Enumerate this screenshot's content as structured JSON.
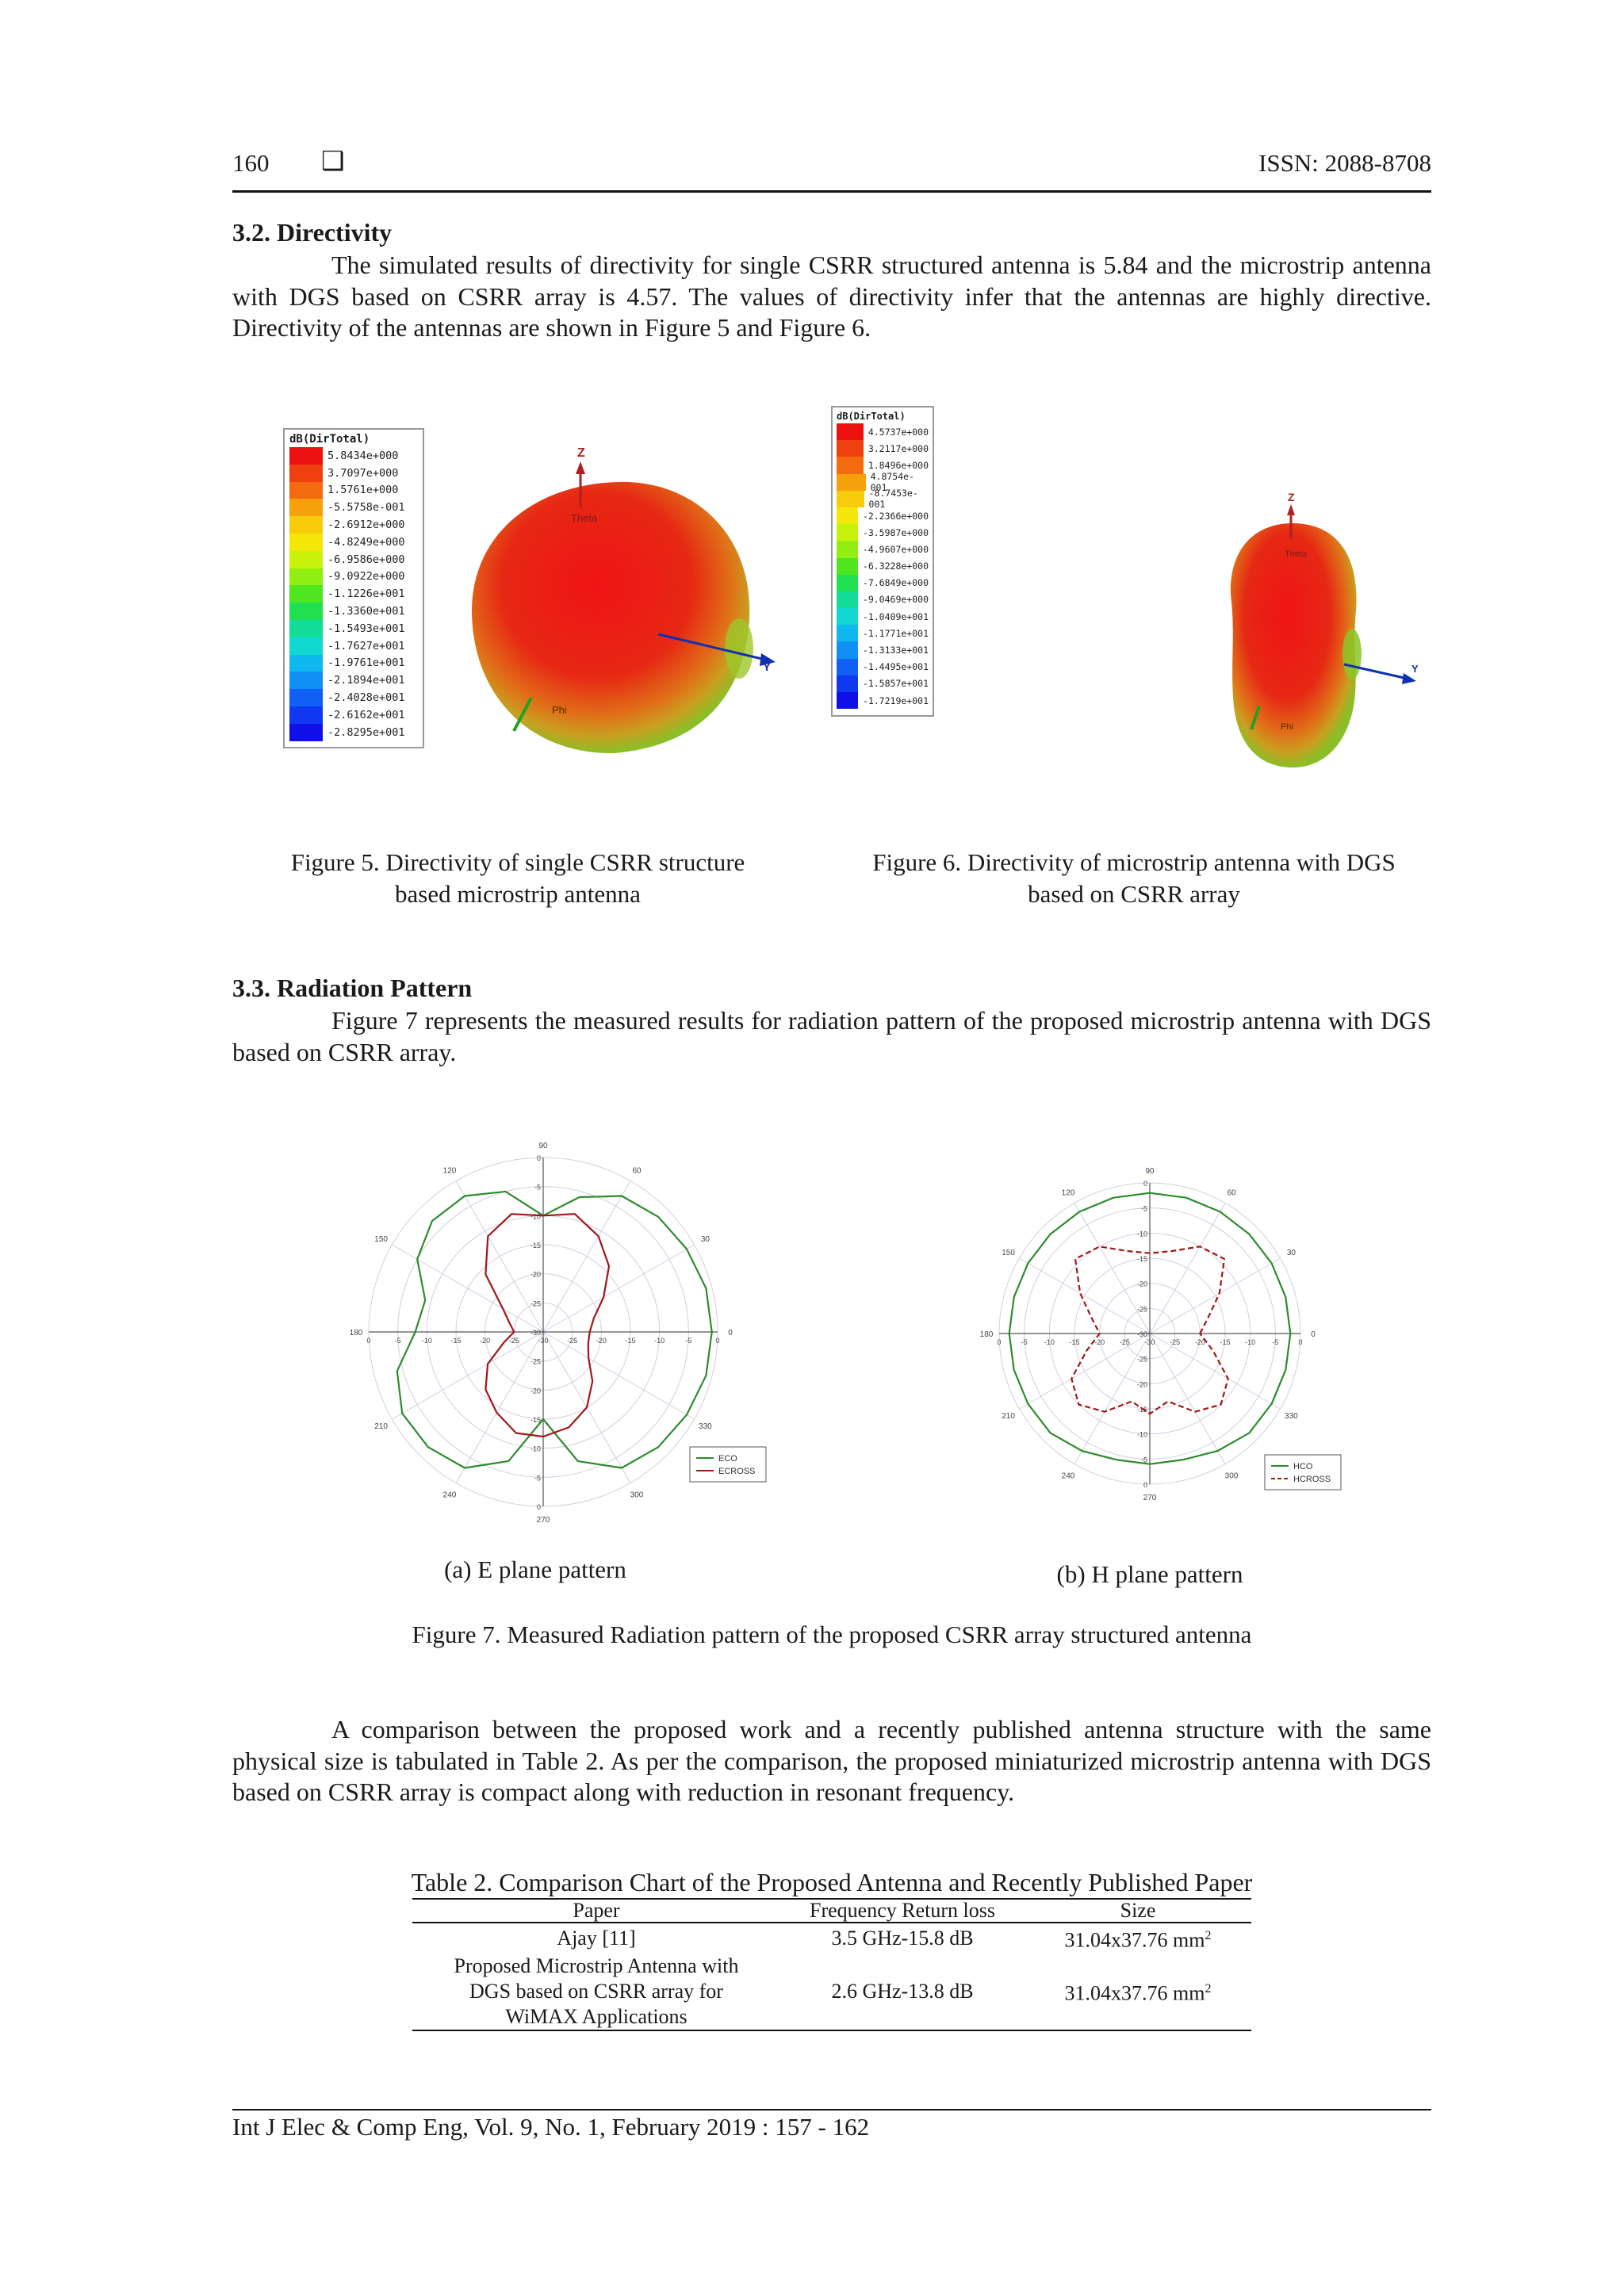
{
  "header": {
    "page_number": "160",
    "symbol": "❑",
    "issn": "ISSN: 2088-8708"
  },
  "section_32": {
    "title": "3.2. Directivity",
    "paragraph": "The simulated results of directivity for single CSRR structured antenna is 5.84 and the microstrip antenna with DGS based on CSRR array is 4.57. The values of directivity infer that the antennas are highly directive. Directivity of the antennas are shown in Figure 5 and Figure 6."
  },
  "figure5": {
    "scale_title": "dB(DirTotal)",
    "scale_values": [
      "5.8434e+000",
      "3.7097e+000",
      "1.5761e+000",
      "-5.5758e-001",
      "-2.6912e+000",
      "-4.8249e+000",
      "-6.9586e+000",
      "-9.0922e+000",
      "-1.1226e+001",
      "-1.3360e+001",
      "-1.5493e+001",
      "-1.7627e+001",
      "-1.9761e+001",
      "-2.1894e+001",
      "-2.4028e+001",
      "-2.6162e+001",
      "-2.8295e+001"
    ],
    "scale_colors": [
      "#ee1111",
      "#f04010",
      "#f36b0e",
      "#f6a00c",
      "#f8cc0a",
      "#f4e80a",
      "#c8f20a",
      "#90ee10",
      "#4fe620",
      "#20e050",
      "#12dd99",
      "#10d8d0",
      "#10b8f0",
      "#1090f5",
      "#1060f5",
      "#1038f0",
      "#1010e8"
    ],
    "axis_labels": {
      "z": "Z",
      "y": "Y",
      "theta": "Theta",
      "phi": "Phi"
    },
    "caption_line1": "Figure 5. Directivity of single CSRR structure",
    "caption_line2": "based microstrip antenna"
  },
  "figure6": {
    "scale_title": "dB(DirTotal)",
    "scale_values": [
      "4.5737e+000",
      "3.2117e+000",
      "1.8496e+000",
      "4.8754e-001",
      "-8.7453e-001",
      "-2.2366e+000",
      "-3.5987e+000",
      "-4.9607e+000",
      "-6.3228e+000",
      "-7.6849e+000",
      "-9.0469e+000",
      "-1.0409e+001",
      "-1.1771e+001",
      "-1.3133e+001",
      "-1.4495e+001",
      "-1.5857e+001",
      "-1.7219e+001"
    ],
    "scale_colors": [
      "#ee1111",
      "#f04010",
      "#f36b0e",
      "#f6a00c",
      "#f8cc0a",
      "#f4e80a",
      "#c8f20a",
      "#90ee10",
      "#4fe620",
      "#20e050",
      "#12dd99",
      "#10d8d0",
      "#10b8f0",
      "#1090f5",
      "#1060f5",
      "#1038f0",
      "#1010e8"
    ],
    "axis_labels": {
      "z": "Z",
      "y": "Y",
      "theta": "Theta",
      "phi": "Phi"
    },
    "caption_line1": "Figure 6. Directivity of microstrip antenna with DGS",
    "caption_line2": "based on CSRR array"
  },
  "section_33": {
    "title": "3.3. Radiation Pattern",
    "paragraph": "Figure 7 represents the measured results for radiation pattern of the proposed microstrip antenna with DGS based on CSRR array."
  },
  "figure7": {
    "angle_labels": [
      "0",
      "30",
      "60",
      "90",
      "120",
      "150",
      "180",
      "210",
      "240",
      "270",
      "300",
      "330"
    ],
    "radial_labels_vertical": [
      "0",
      "-5",
      "-10",
      "-15",
      "-20",
      "-25",
      "-30",
      "-25",
      "-20",
      "-15",
      "-10",
      "-5",
      "0"
    ],
    "radial_labels_horizontal": [
      "0",
      "-5",
      "-10",
      "-15",
      "-20",
      "-25",
      "-30",
      "-25",
      "-20",
      "-15",
      "-10",
      "-5",
      "0"
    ],
    "plot_a": {
      "legend": [
        "ECO",
        "ECROSS"
      ],
      "caption": "(a) E plane pattern"
    },
    "plot_b": {
      "legend": [
        "HCO",
        "HCROSS"
      ],
      "caption": "(b) H plane pattern"
    },
    "caption": "Figure 7. Measured Radiation pattern of the proposed CSRR array structured antenna",
    "colors": {
      "co": "#2e8b2e",
      "cross": "#a01818"
    }
  },
  "chart_data": [
    {
      "type": "polar-line",
      "title": "(a) E plane pattern",
      "radial_range_db": [
        -30,
        0
      ],
      "theta_deg": [
        0,
        15,
        30,
        45,
        60,
        75,
        90,
        105,
        120,
        135,
        150,
        165,
        180,
        195,
        210,
        225,
        240,
        255,
        270,
        285,
        300,
        315,
        330,
        345
      ],
      "series": [
        {
          "name": "ECO",
          "values": [
            -1,
            -1,
            -1.5,
            -2,
            -3,
            -6,
            -10,
            -5,
            -3,
            -3,
            -5,
            -9,
            -8,
            -4,
            -2,
            -2,
            -3,
            -7,
            -15,
            -7,
            -3,
            -2,
            -1.5,
            -1
          ]
        },
        {
          "name": "ECROSS",
          "values": [
            -22,
            -21,
            -18,
            -14,
            -11,
            -9,
            -10,
            -9,
            -11,
            -16,
            -22,
            -24,
            -25,
            -23,
            -19,
            -16,
            -14,
            -12,
            -12,
            -13,
            -15,
            -18,
            -21,
            -22
          ]
        }
      ]
    },
    {
      "type": "polar-line",
      "title": "(b) H plane pattern",
      "radial_range_db": [
        -30,
        0
      ],
      "theta_deg": [
        0,
        15,
        30,
        45,
        60,
        75,
        90,
        105,
        120,
        135,
        150,
        165,
        180,
        195,
        210,
        225,
        240,
        255,
        270,
        285,
        300,
        315,
        330,
        345
      ],
      "series": [
        {
          "name": "HCO",
          "values": [
            -2,
            -2,
            -2,
            -2,
            -2,
            -2,
            -2,
            -2,
            -2,
            -2,
            -2,
            -2,
            -2,
            -2,
            -2,
            -2,
            -3,
            -4,
            -4,
            -4,
            -3,
            -2,
            -2,
            -2
          ]
        },
        {
          "name": "HCROSS",
          "values": [
            -20,
            -18,
            -14,
            -9,
            -10,
            -13,
            -14,
            -13,
            -10,
            -9,
            -14,
            -18,
            -20,
            -17,
            -12,
            -10,
            -12,
            -16,
            -14,
            -16,
            -12,
            -10,
            -12,
            -17
          ]
        }
      ]
    }
  ],
  "paragraph_comparison": "A comparison between the proposed work and a recently published antenna structure with the same physical size is tabulated in Table 2. As per the comparison, the proposed miniaturized microstrip antenna with DGS based on CSRR array is compact along with reduction in resonant frequency.",
  "table2": {
    "title": "Table 2. Comparison Chart of the Proposed Antenna and Recently Published Paper",
    "headers": [
      "Paper",
      "Frequency Return loss",
      "Size"
    ],
    "rows": [
      {
        "paper_lines": [
          "Ajay [11]"
        ],
        "freq": "3.5 GHz-15.8 dB",
        "size": "31.04x37.76 mm",
        "sup": "2"
      },
      {
        "paper_lines": [
          "Proposed Microstrip Antenna with",
          "DGS based on CSRR array for",
          "WiMAX Applications"
        ],
        "freq": "2.6 GHz-13.8 dB",
        "size": "31.04x37.76 mm",
        "sup": "2"
      }
    ]
  },
  "footer": "Int J Elec & Comp Eng, Vol. 9, No. 1, February 2019 :  157 - 162"
}
